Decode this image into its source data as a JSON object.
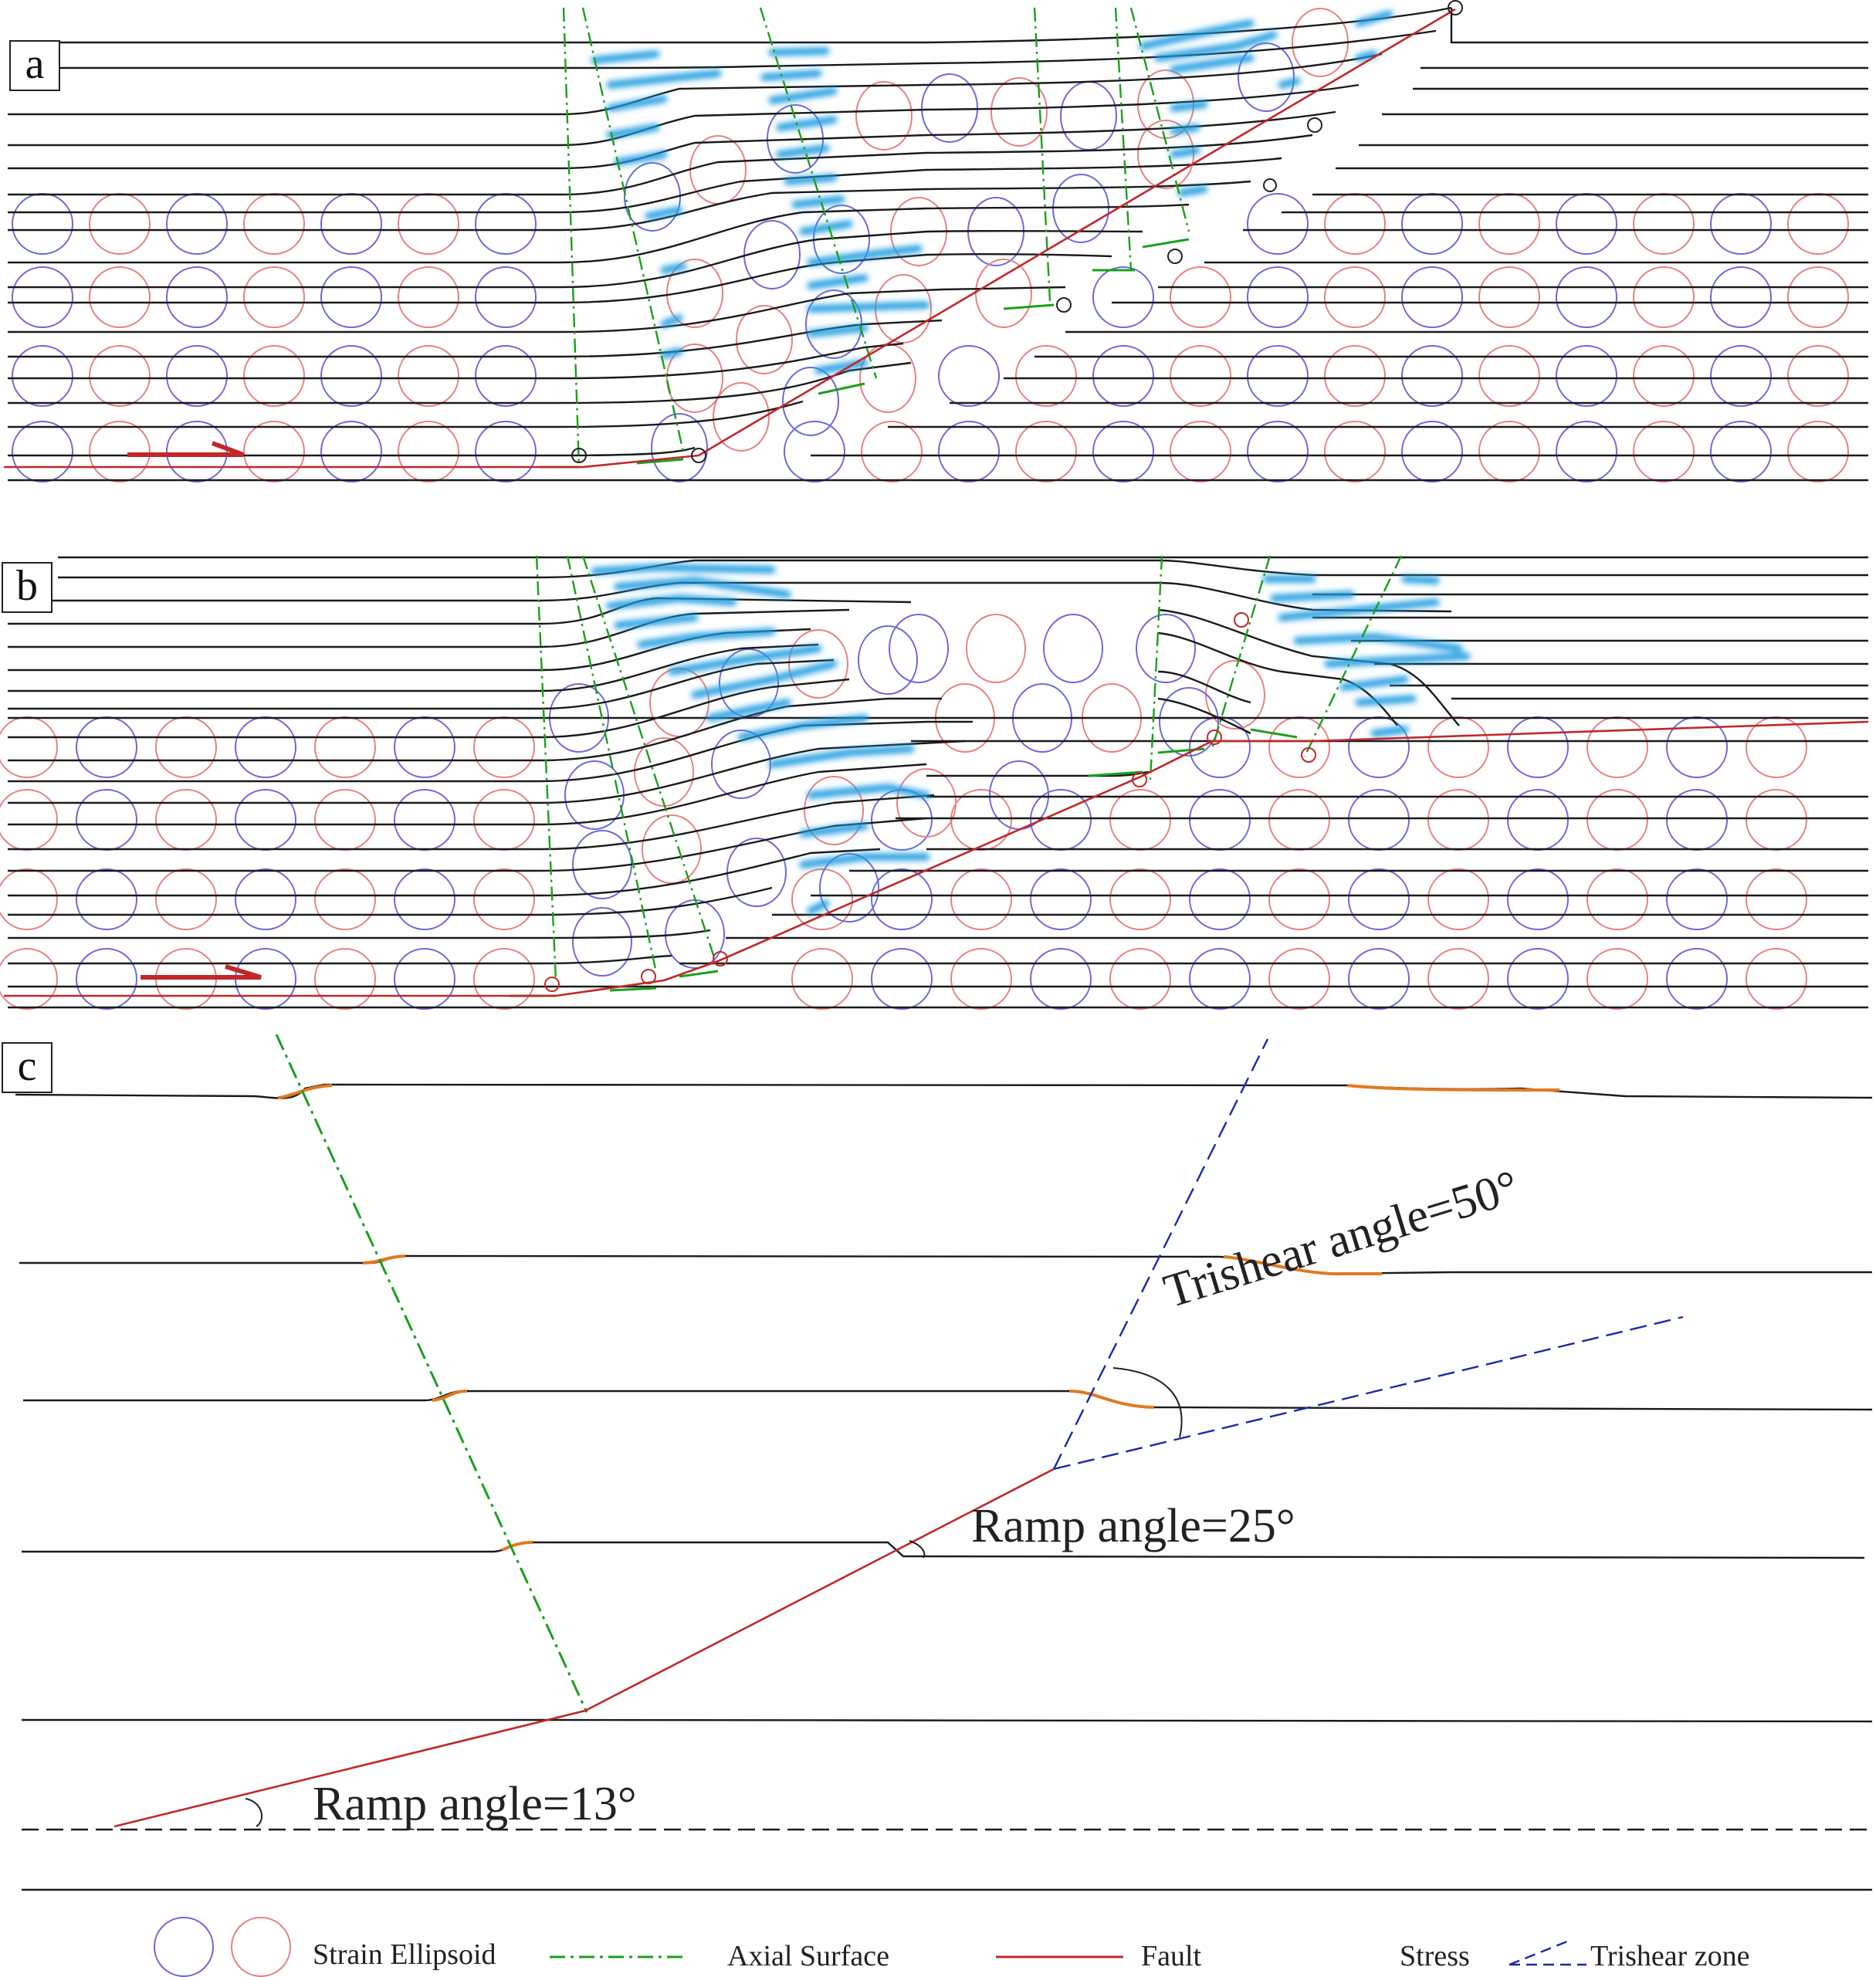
{
  "panels": {
    "a": {
      "label": "a"
    },
    "b": {
      "label": "b"
    },
    "c": {
      "label": "c"
    }
  },
  "annotations": {
    "trishear_angle": "Trishear angle=50°",
    "ramp_angle_upper": "Ramp angle=25°",
    "ramp_angle_lower": "Ramp angle=13°"
  },
  "legend": {
    "strain_ellipsoid": "Strain Ellipsoid",
    "axial_surface": "Axial Surface",
    "fault": "Fault",
    "stress": "Stress",
    "trishear_zone": "Trishear zone"
  },
  "colors": {
    "ellipse_blue": "#6a6ad8",
    "ellipse_red": "#e88080",
    "axial_green": "#1aa01a",
    "fault_red": "#c0282a",
    "stress_blue": "#1e9be0",
    "trishear_blue": "#1a2aa8",
    "flex_orange": "#e07a20",
    "bed_black": "#1a1a1a"
  }
}
